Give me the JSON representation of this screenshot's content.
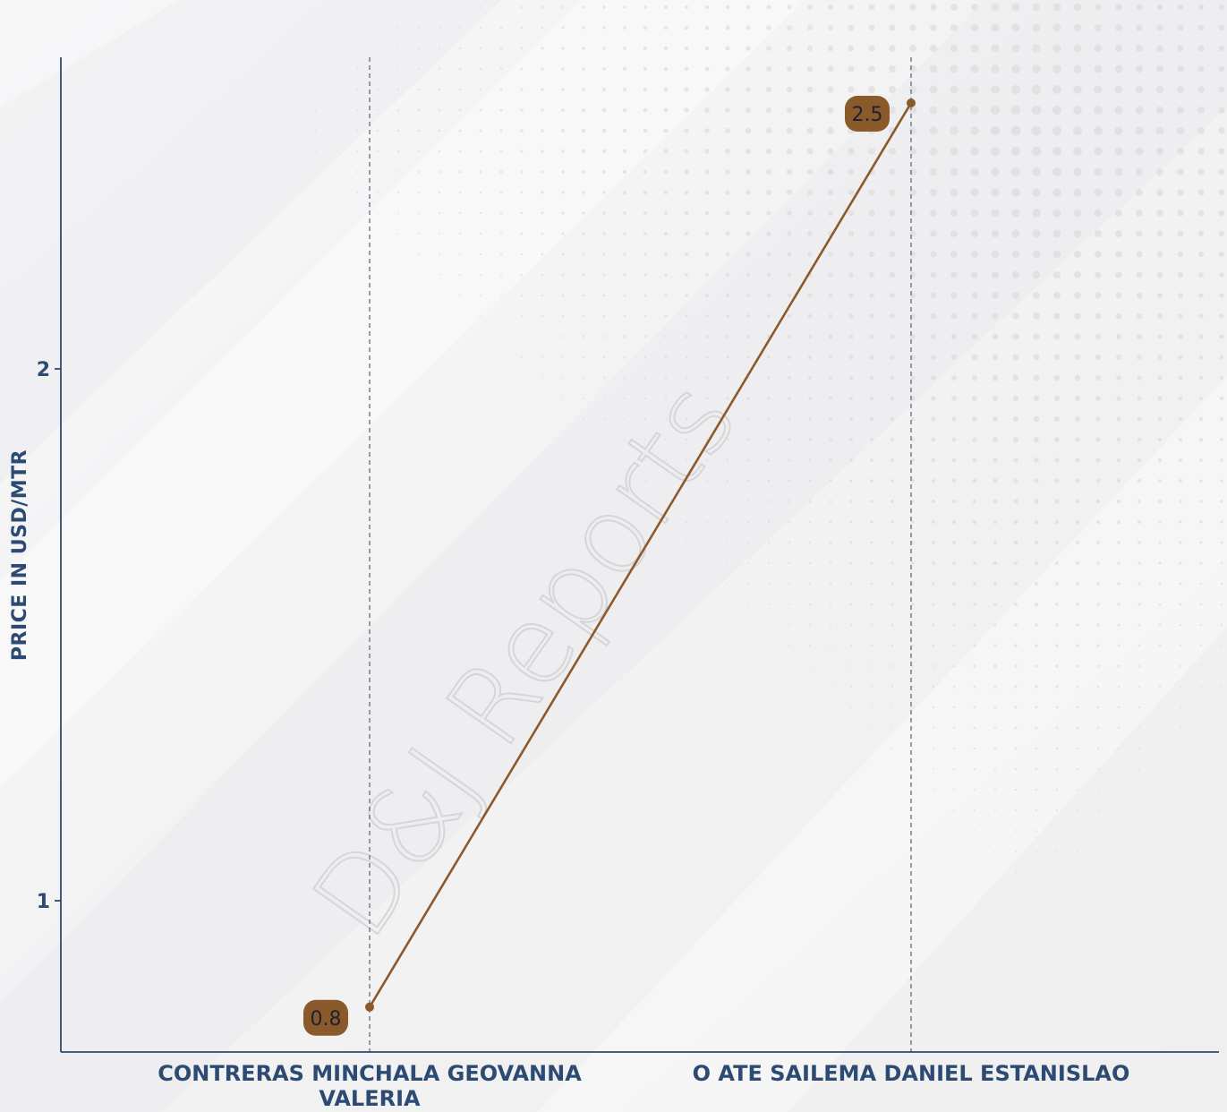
{
  "chart_data": {
    "type": "line",
    "categories": [
      "CONTRERAS MINCHALA GEOVANNA VALERIA",
      "O ATE SAILEMA DANIEL ESTANISLAO"
    ],
    "category_label_lines": [
      [
        "CONTRERAS MINCHALA GEOVANNA",
        "VALERIA"
      ],
      [
        "O ATE SAILEMA DANIEL ESTANISLAO"
      ]
    ],
    "values": [
      0.8,
      2.5
    ],
    "data_labels": [
      "0.8",
      "2.5"
    ],
    "ylabel": "PRICE IN USD/MTR",
    "xlabel": "",
    "title": "",
    "yticks": [
      1,
      2
    ],
    "ytick_labels": [
      "1",
      "2"
    ],
    "ylim": [
      0.52,
      2.6
    ],
    "grid": "vertical dashed at categories",
    "legend": "none",
    "watermark": "D&J Reports"
  },
  "colors": {
    "line": "#8b5a2b",
    "label_bg": "#8b5a2b",
    "label_text": "#1c2233",
    "axis": "#2d4a73",
    "axis_text": "#2d4a73",
    "grid": "#5d6d80",
    "watermark": "#d6d6d8"
  }
}
